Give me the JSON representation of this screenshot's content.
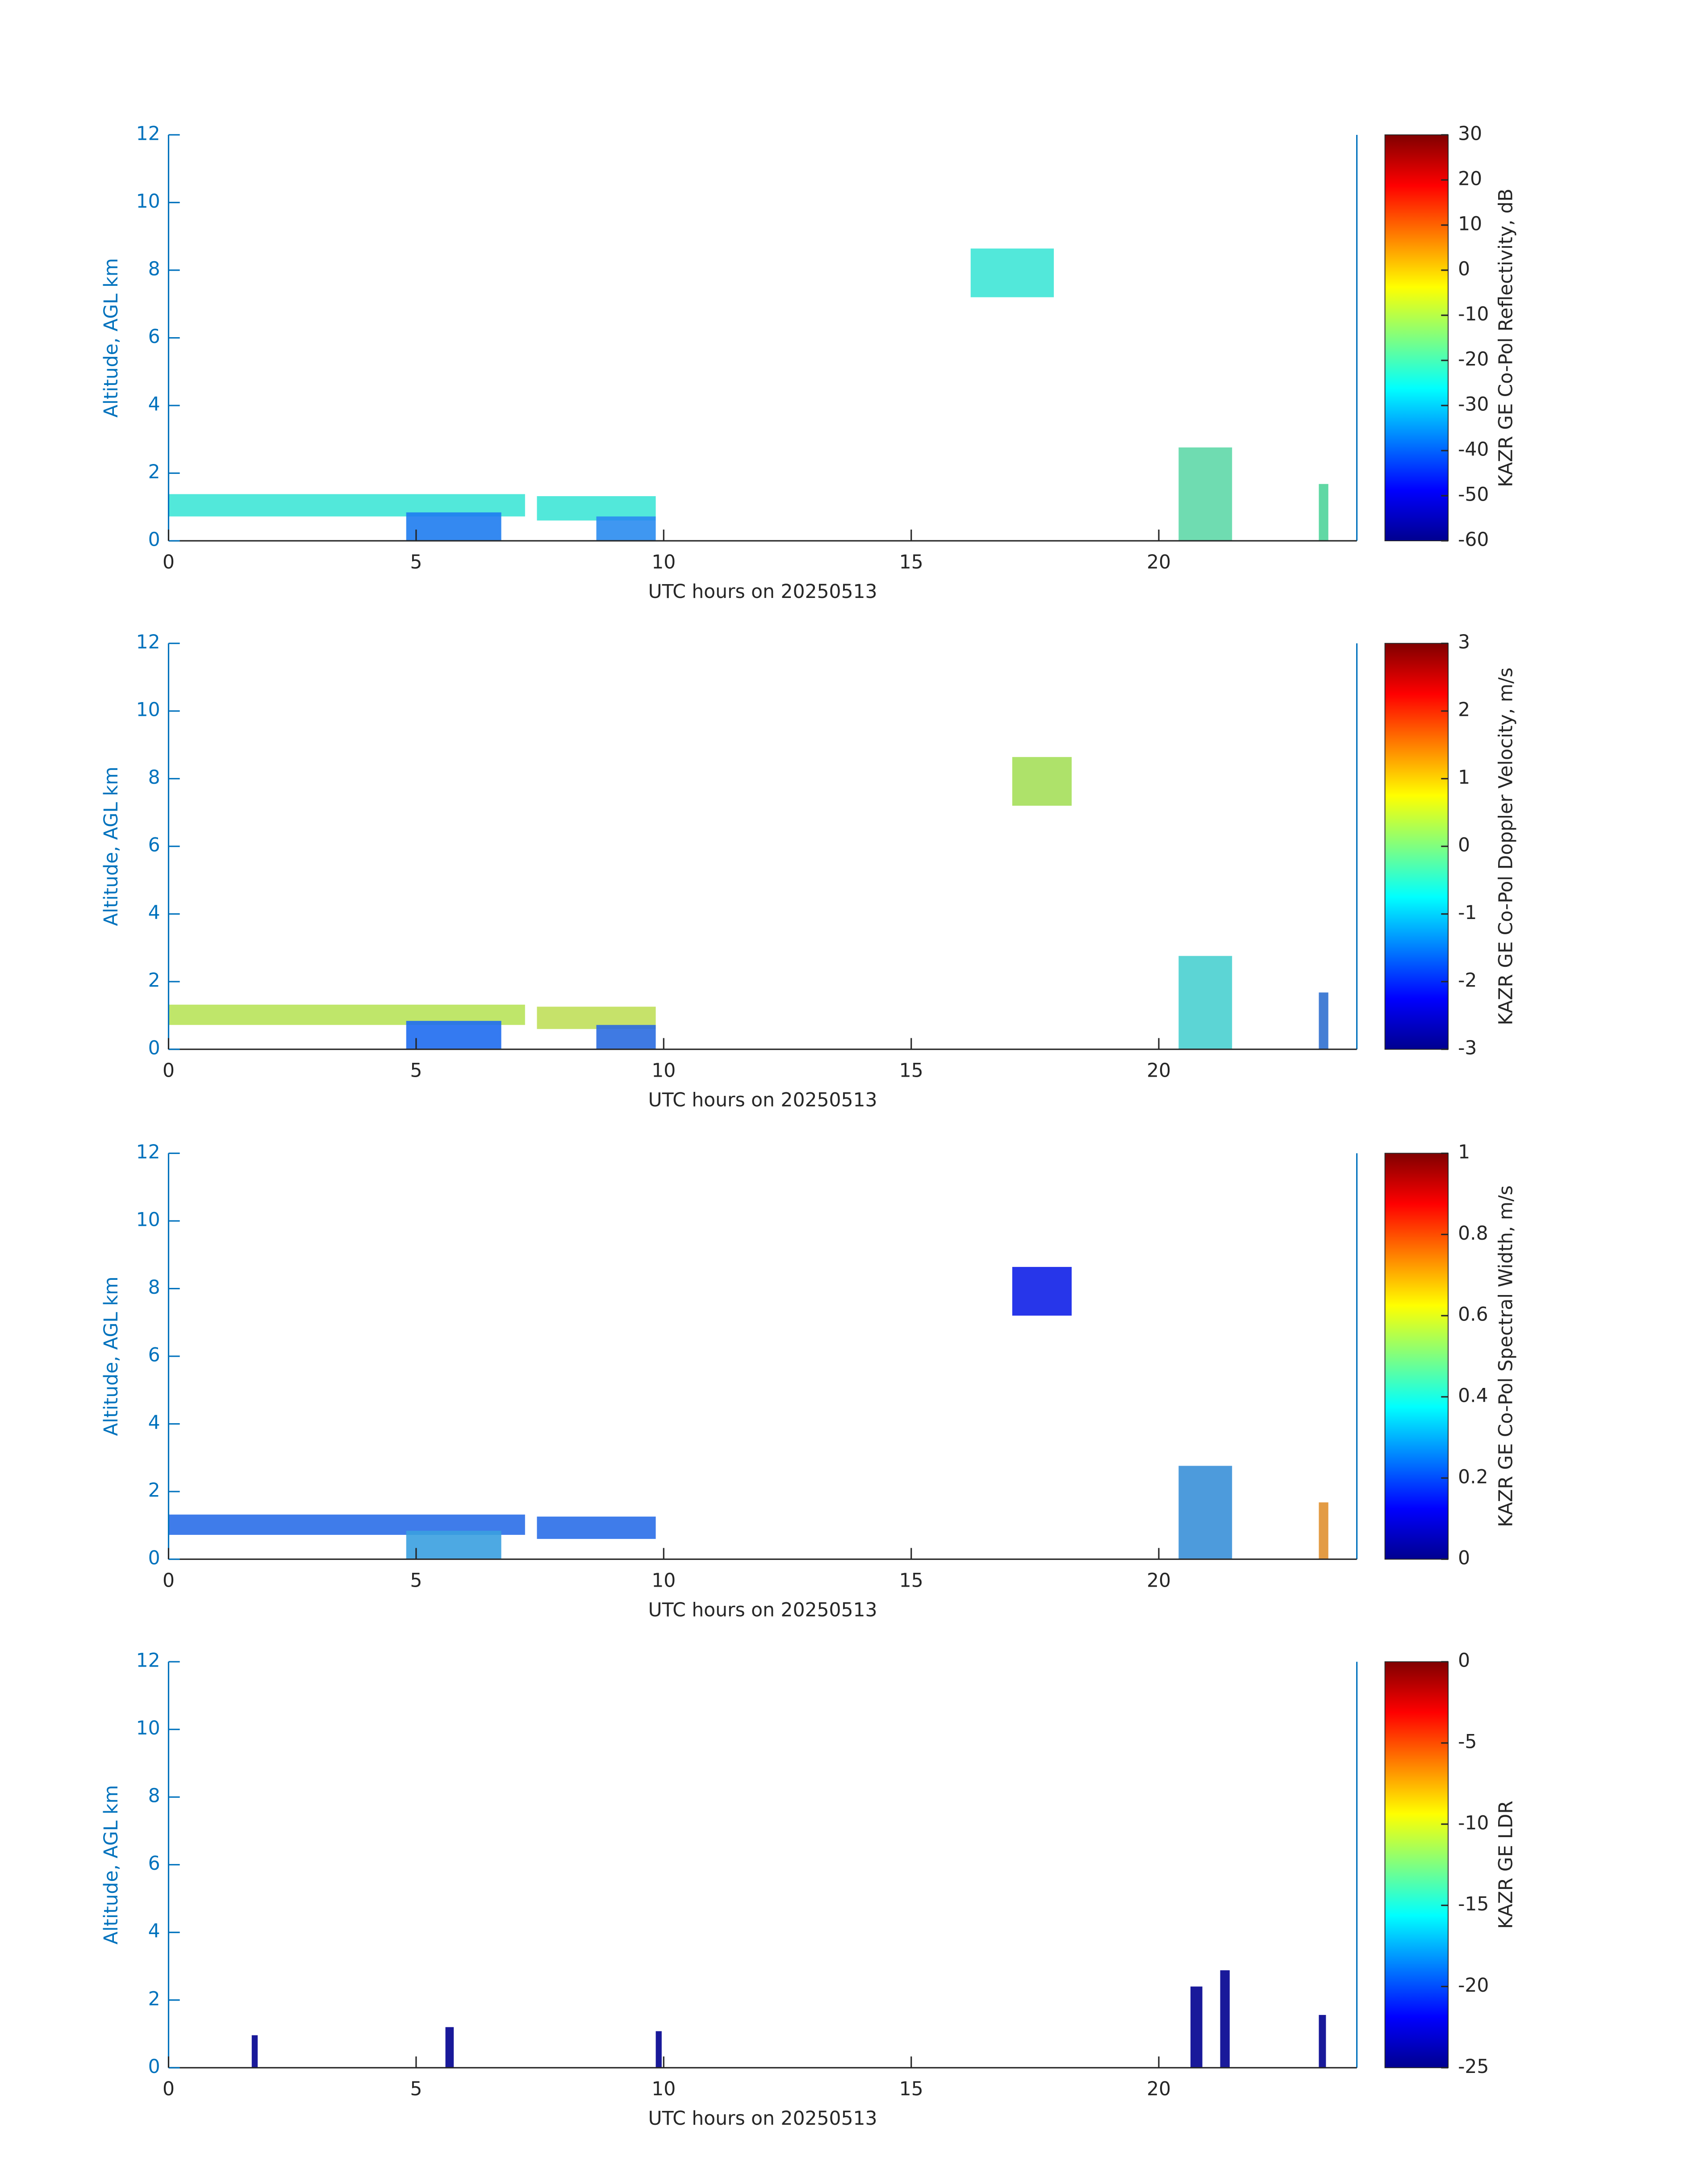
{
  "chart_data": [
    {
      "type": "heatmap",
      "xlabel": "UTC hours on 20250513",
      "ylabel": "Altitude, AGL km",
      "xlim": [
        0,
        24
      ],
      "xticks": [
        0,
        5,
        10,
        15,
        20
      ],
      "ylim": [
        0,
        12
      ],
      "yticks": [
        0,
        2,
        4,
        6,
        8,
        10,
        12
      ],
      "colorbar": {
        "label": "KAZR GE Co-Pol Reflectivity, dB",
        "lim": [
          -60,
          30
        ],
        "ticks": [
          -60,
          -50,
          -40,
          -30,
          -20,
          -10,
          0,
          10,
          20,
          30
        ],
        "colormap": "jet"
      }
    },
    {
      "type": "heatmap",
      "xlabel": "UTC hours on 20250513",
      "ylabel": "Altitude, AGL km",
      "xlim": [
        0,
        24
      ],
      "xticks": [
        0,
        5,
        10,
        15,
        20
      ],
      "ylim": [
        0,
        12
      ],
      "yticks": [
        0,
        2,
        4,
        6,
        8,
        10,
        12
      ],
      "colorbar": {
        "label": "KAZR GE Co-Pol Doppler Velocity, m/s",
        "lim": [
          -3,
          3
        ],
        "ticks": [
          -3,
          -2,
          -1,
          0,
          1,
          2,
          3
        ],
        "colormap": "jet"
      }
    },
    {
      "type": "heatmap",
      "xlabel": "UTC hours on 20250513",
      "ylabel": "Altitude, AGL km",
      "xlim": [
        0,
        24
      ],
      "xticks": [
        0,
        5,
        10,
        15,
        20
      ],
      "ylim": [
        0,
        12
      ],
      "yticks": [
        0,
        2,
        4,
        6,
        8,
        10,
        12
      ],
      "colorbar": {
        "label": "KAZR GE Co-Pol Spectral Width, m/s",
        "lim": [
          0,
          1
        ],
        "ticks": [
          0,
          0.2,
          0.4,
          0.6,
          0.8,
          1
        ],
        "colormap": "jet"
      }
    },
    {
      "type": "heatmap",
      "xlabel": "UTC hours on 20250513",
      "ylabel": "Altitude, AGL km",
      "xlim": [
        0,
        24
      ],
      "xticks": [
        0,
        5,
        10,
        15,
        20
      ],
      "ylim": [
        0,
        12
      ],
      "yticks": [
        0,
        2,
        4,
        6,
        8,
        10,
        12
      ],
      "colorbar": {
        "label": "KAZR GE LDR",
        "lim": [
          -25,
          0
        ],
        "ticks": [
          -25,
          -20,
          -15,
          -10,
          -5,
          0
        ],
        "colormap": "jet"
      }
    }
  ]
}
